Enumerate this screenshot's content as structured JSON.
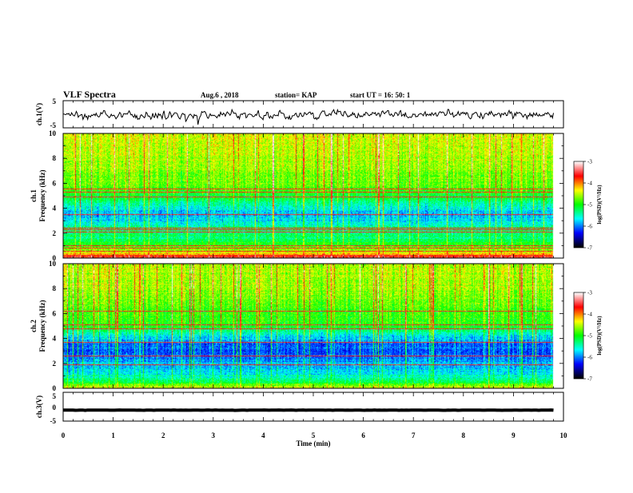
{
  "header": {
    "title": "VLF Spectra",
    "date": "Aug.6  , 2018",
    "station": "station= KAP",
    "start_time": "start  UT  =   16: 50: 1"
  },
  "chart_data": [
    {
      "type": "line",
      "id": "ch1-waveform",
      "ylabel": "ch.1(V)",
      "xlim": [
        0,
        10
      ],
      "ylim": [
        -5,
        5
      ],
      "yticks": [
        "5",
        "-5"
      ],
      "trace_mean": 0,
      "trace_amplitude": 2.2,
      "trace_end_min": 9.8,
      "color": "#000000"
    },
    {
      "type": "heatmap",
      "id": "ch1-spectrogram",
      "ylabel": "ch.1\nFrequency (kHz)",
      "xlim": [
        0,
        10
      ],
      "ylim": [
        0,
        10
      ],
      "yticks": [
        "0",
        "2",
        "4",
        "6",
        "8",
        "10"
      ],
      "data_end_min": 9.8,
      "colorbar": {
        "label": "log(PSD)(V²/Hz)",
        "range": [
          -7,
          -3
        ],
        "ticks": [
          "-3",
          "-4",
          "-5",
          "-6",
          "-7"
        ]
      },
      "profile_khz": [
        0,
        0.3,
        0.6,
        1,
        1.5,
        2,
        2.5,
        3,
        3.5,
        4,
        4.5,
        5,
        5.5,
        6,
        7,
        8,
        9,
        10
      ],
      "profile_log_psd": [
        -3.5,
        -4.2,
        -4.6,
        -5,
        -5.2,
        -5.3,
        -5.45,
        -5.7,
        -5.85,
        -5.6,
        -5.3,
        -5.1,
        -4.8,
        -4.75,
        -4.65,
        -4.55,
        -4.45,
        -4.45
      ],
      "horizontal_lines_khz": [
        0.2,
        0.5,
        0.8,
        1.0,
        2.05,
        2.25,
        2.4,
        3.5,
        4.9,
        5.3,
        5.55
      ],
      "bright_vertical_bursts": true
    },
    {
      "type": "heatmap",
      "id": "ch2-spectrogram",
      "ylabel": "ch.2\nFrequency (kHz)",
      "xlim": [
        0,
        10
      ],
      "ylim": [
        0,
        10
      ],
      "yticks": [
        "0",
        "2",
        "4",
        "6",
        "8",
        "10"
      ],
      "data_end_min": 9.8,
      "colorbar": {
        "label": "log(PSD)(V²/Hz)",
        "range": [
          -7,
          -3
        ],
        "ticks": [
          "-3",
          "-4",
          "-5",
          "-6",
          "-7"
        ]
      },
      "profile_khz": [
        0,
        0.3,
        0.6,
        1,
        1.5,
        2,
        2.5,
        3,
        3.5,
        4,
        4.5,
        5,
        6,
        7,
        8,
        9,
        10
      ],
      "profile_log_psd": [
        -4.4,
        -4.9,
        -5.3,
        -5.55,
        -5.75,
        -5.85,
        -6.05,
        -6.15,
        -6.05,
        -5.75,
        -5.4,
        -5.0,
        -4.85,
        -4.75,
        -4.6,
        -4.55,
        -4.55
      ],
      "horizontal_lines_khz": [
        1.9,
        2.6,
        3.7,
        4.8,
        5.1,
        6.2
      ],
      "bright_vertical_bursts": true
    },
    {
      "type": "line",
      "id": "ch3-waveform",
      "ylabel": "ch.3(V)",
      "xlim": [
        0,
        10
      ],
      "ylim": [
        -5,
        5
      ],
      "yticks": [
        "5",
        "0",
        "-5"
      ],
      "trace_mean": -1.2,
      "trace_amplitude": 0.35,
      "trace_end_min": 9.8,
      "color": "#000000"
    }
  ],
  "x_axis": {
    "label": "Time (min)",
    "ticks": [
      "0",
      "1",
      "2",
      "3",
      "4",
      "5",
      "6",
      "7",
      "8",
      "9",
      "10"
    ]
  },
  "colormap": [
    "#000000",
    "#0000ff",
    "#00ffff",
    "#00ff00",
    "#ffff00",
    "#ff0000",
    "#ffffff"
  ]
}
